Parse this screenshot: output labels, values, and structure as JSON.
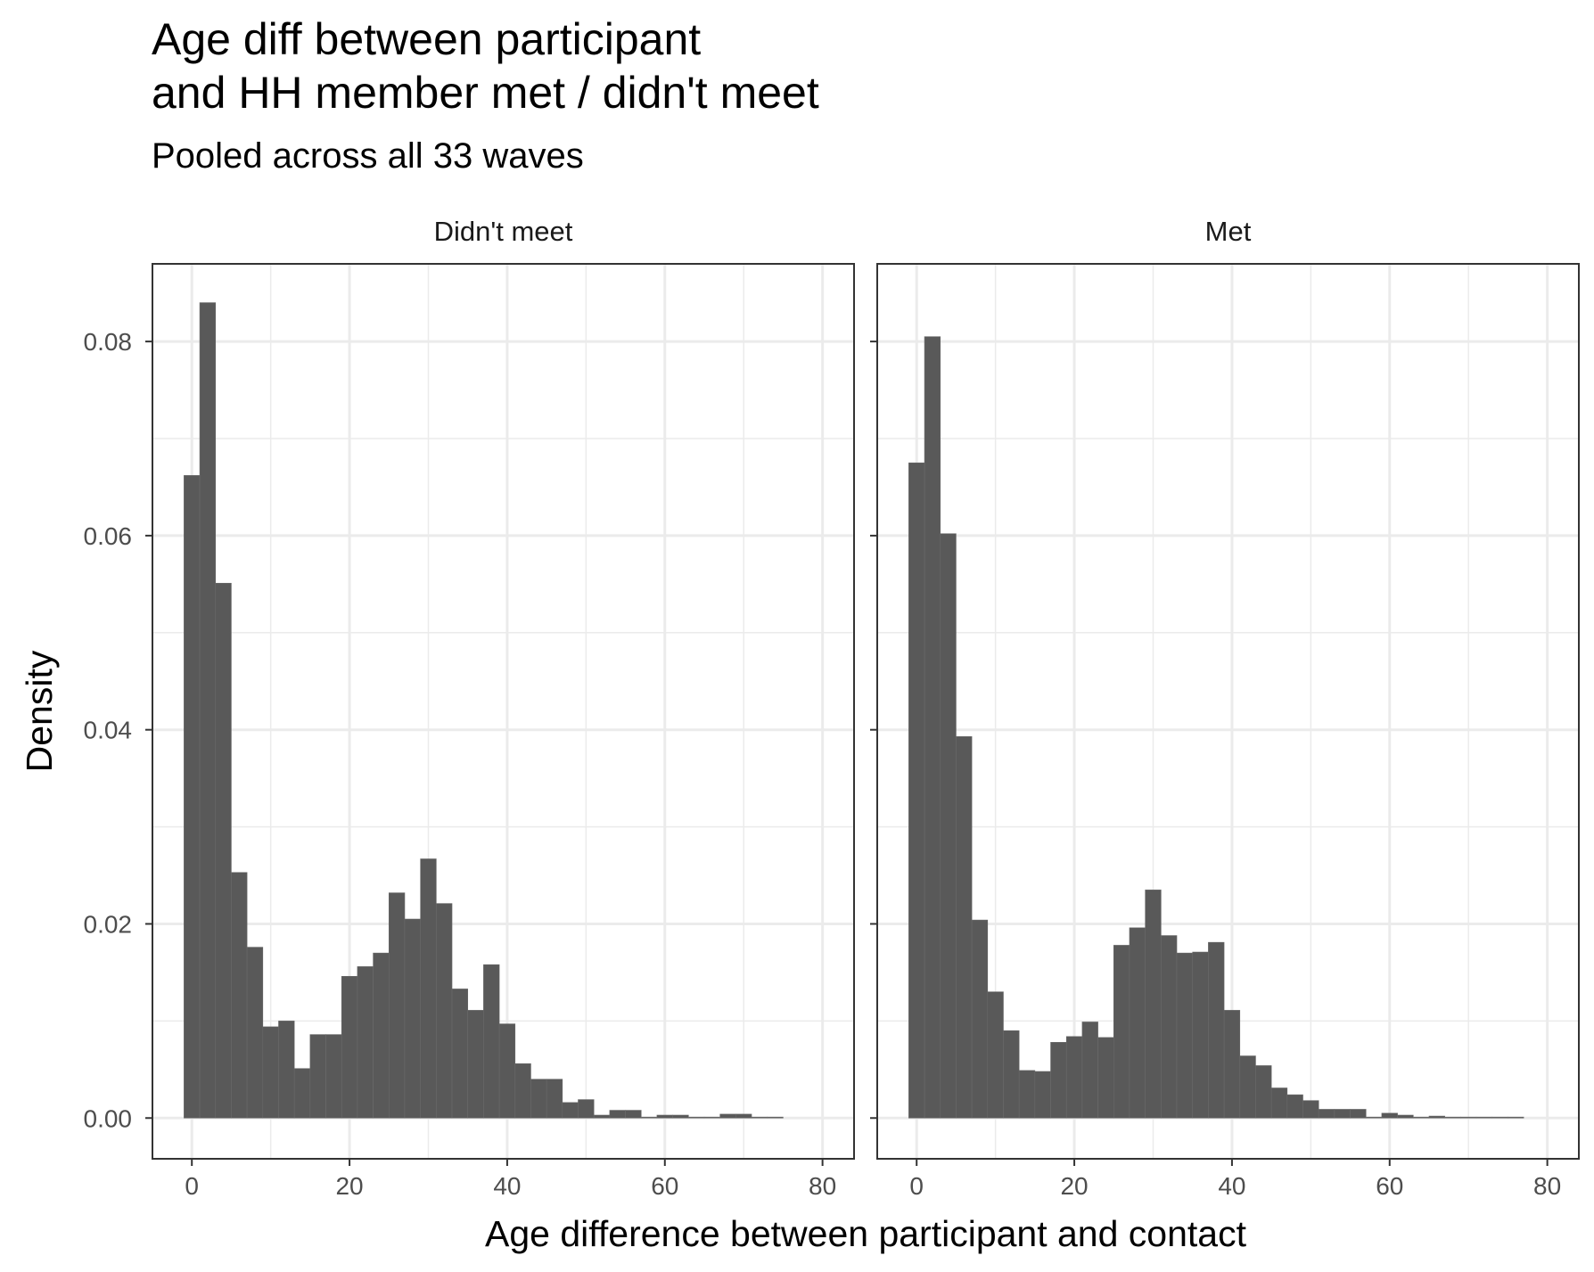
{
  "title": {
    "line1": "Age diff between participant",
    "line2": "and HH member met / didn't meet"
  },
  "subtitle": "Pooled across all 33 waves",
  "chart_data": {
    "type": "bar",
    "kind": "faceted histogram",
    "xlabel": "Age difference between participant and contact",
    "ylabel": "Density",
    "xlim": [
      -5,
      84
    ],
    "ylim": [
      -0.0042,
      0.088
    ],
    "x_ticks": [
      0,
      20,
      40,
      60,
      80
    ],
    "y_ticks": [
      0.0,
      0.02,
      0.04,
      0.06,
      0.08
    ],
    "y_tick_labels": [
      "0.00",
      "0.02",
      "0.04",
      "0.06",
      "0.08"
    ],
    "bin_width": 2,
    "bin_start": -1,
    "grid": true,
    "colors": {
      "bar": "#595959",
      "grid": "#ebebeb",
      "panel_border": "#333333"
    },
    "facets": [
      {
        "name": "Didn't meet",
        "values": [
          0.0662,
          0.084,
          0.0551,
          0.0253,
          0.0176,
          0.0094,
          0.01,
          0.0051,
          0.0086,
          0.0086,
          0.0146,
          0.0156,
          0.017,
          0.0232,
          0.0205,
          0.0267,
          0.0221,
          0.0133,
          0.0111,
          0.0158,
          0.0097,
          0.0056,
          0.004,
          0.004,
          0.0016,
          0.0019,
          0.0003,
          0.0008,
          0.0008,
          0.0001,
          0.0003,
          0.0003,
          0.0001,
          0.0001,
          0.0004,
          0.0004,
          0.0001,
          0.0001,
          0.0,
          0.0,
          0.0
        ]
      },
      {
        "name": "Met",
        "values": [
          0.0675,
          0.0805,
          0.0602,
          0.0393,
          0.0204,
          0.013,
          0.009,
          0.0049,
          0.0048,
          0.0078,
          0.0084,
          0.0099,
          0.0083,
          0.0178,
          0.0196,
          0.0235,
          0.0188,
          0.017,
          0.0171,
          0.0181,
          0.0111,
          0.0064,
          0.0054,
          0.0031,
          0.0024,
          0.0018,
          0.0009,
          0.0009,
          0.0009,
          0.0001,
          0.0005,
          0.0003,
          0.0001,
          0.0002,
          0.0001,
          0.0001,
          0.0001,
          0.0001,
          0.0001,
          0.0,
          0.0
        ]
      }
    ]
  }
}
